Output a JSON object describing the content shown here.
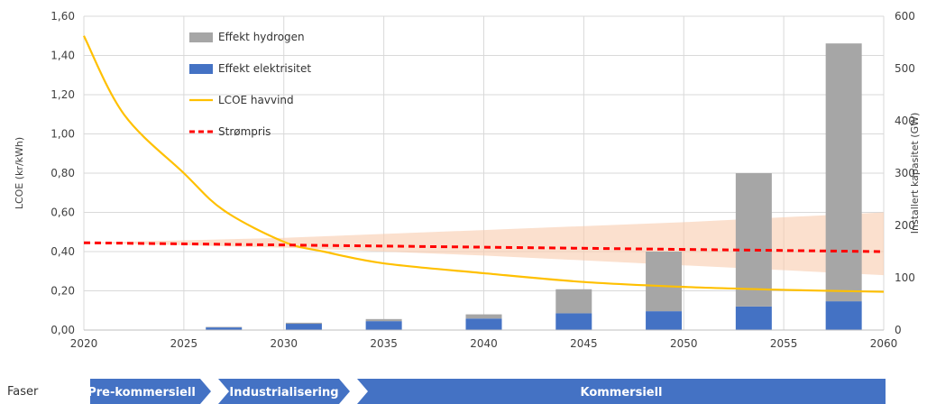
{
  "chart_data": {
    "type": "bar",
    "x_ticks": [
      "2020",
      "2025",
      "2030",
      "2035",
      "2040",
      "2045",
      "2050",
      "2055",
      "2060"
    ],
    "x_range": [
      2020,
      2060
    ],
    "ylabel": "LCOE (kr/kWh)",
    "y2label": "Installert kapasitet (GW)",
    "y_range": [
      0,
      1.6
    ],
    "y_ticks": [
      "0,00",
      "0,20",
      "0,40",
      "0,60",
      "0,80",
      "1,00",
      "1,20",
      "1,40",
      "1,60"
    ],
    "y_tick_values": [
      0,
      0.2,
      0.4,
      0.6,
      0.8,
      1.0,
      1.2,
      1.4,
      1.6
    ],
    "y2_range": [
      0,
      600
    ],
    "y2_ticks": [
      "0",
      "100",
      "200",
      "300",
      "400",
      "500",
      "600"
    ],
    "y2_tick_values": [
      0,
      100,
      200,
      300,
      400,
      500,
      600
    ],
    "grid": true,
    "legend_position": "top-left",
    "bars": {
      "x": [
        2027,
        2031,
        2035,
        2040,
        2044.5,
        2049,
        2053.5,
        2058
      ],
      "elektrisitet": [
        5,
        12,
        17,
        22,
        32,
        36,
        45,
        55
      ],
      "hydrogen": [
        1,
        2,
        4,
        8,
        46,
        114,
        255,
        493
      ]
    },
    "lcoe_line": {
      "x": [
        2020,
        2022,
        2025,
        2027,
        2030,
        2032,
        2035,
        2040,
        2045,
        2050,
        2055,
        2060
      ],
      "y": [
        1.5,
        1.1,
        0.8,
        0.61,
        0.45,
        0.4,
        0.34,
        0.29,
        0.245,
        0.22,
        0.205,
        0.195
      ]
    },
    "strompris_line": {
      "x": [
        2020,
        2060
      ],
      "y": [
        0.445,
        0.4
      ]
    },
    "strompris_band": {
      "x": [
        2020,
        2030,
        2040,
        2050,
        2060
      ],
      "upper": [
        0.445,
        0.47,
        0.51,
        0.55,
        0.6
      ],
      "lower": [
        0.445,
        0.42,
        0.38,
        0.33,
        0.28
      ]
    },
    "legend": {
      "hydrogen": "Effekt hydrogen",
      "elektrisitet": "Effekt elektrisitet",
      "lcoe": "LCOE havvind",
      "strompris": "Strømpris"
    },
    "colors": {
      "hydrogen": "#a6a6a6",
      "elektrisitet": "#4472c4",
      "lcoe": "#ffc000",
      "strompris": "#ff0000",
      "band": "#f8cbad",
      "phase": "#4472c4"
    }
  },
  "phases": {
    "label": "Faser",
    "items": [
      {
        "label": "Pre-kommersiell",
        "from": 2020,
        "to": 2034
      },
      {
        "label": "Industrialisering",
        "from": 2034,
        "to": 2048
      },
      {
        "label": "Kommersiell",
        "from": 2048,
        "to": 2060
      }
    ]
  }
}
